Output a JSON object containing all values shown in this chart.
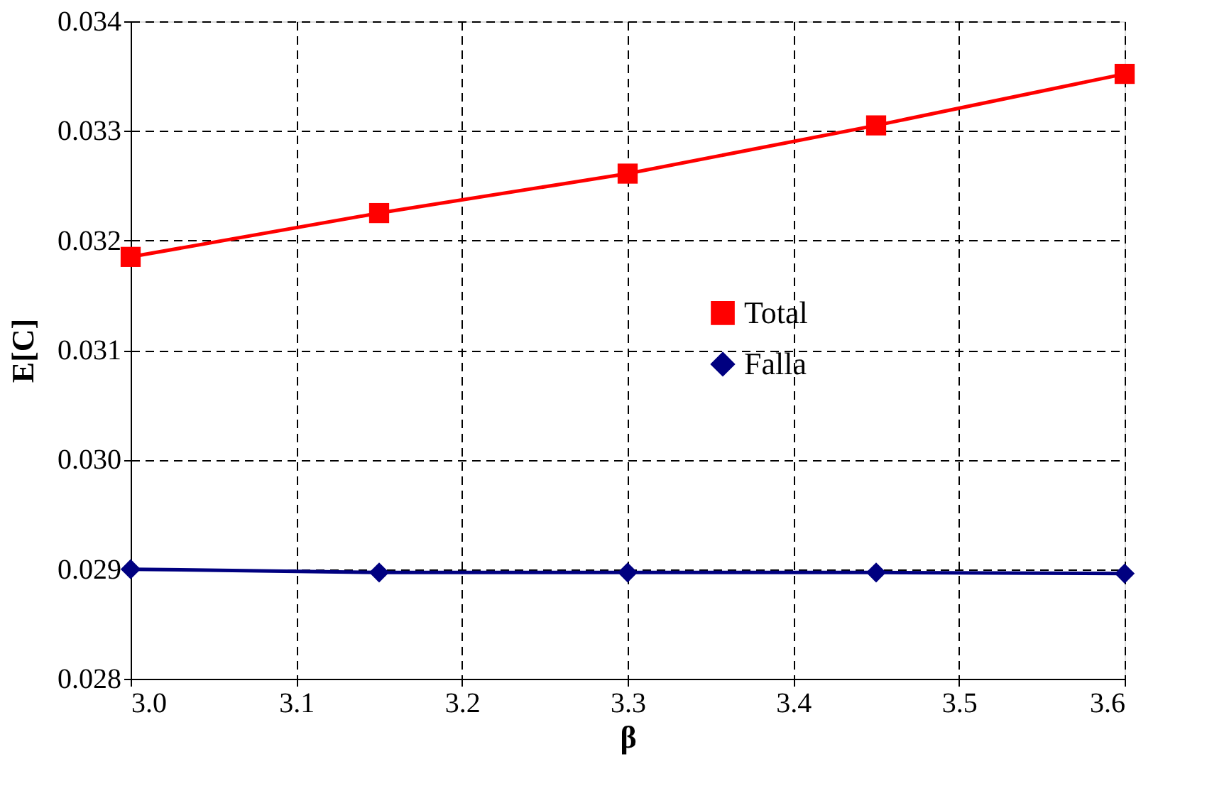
{
  "chart_data": {
    "type": "line",
    "xlabel": "β",
    "ylabel": "E[C]",
    "x": [
      3.0,
      3.15,
      3.3,
      3.45,
      3.6
    ],
    "series": [
      {
        "name": "Total",
        "color": "#ff0000",
        "marker": "square",
        "values": [
          0.03185,
          0.03225,
          0.03261,
          0.03305,
          0.03352
        ]
      },
      {
        "name": "Falla",
        "color": "#000080",
        "marker": "diamond",
        "values": [
          0.029,
          0.02897,
          0.02897,
          0.02897,
          0.02896
        ]
      }
    ],
    "xlim": [
      3.0,
      3.6
    ],
    "xticks": [
      {
        "value": 3.0,
        "label": "3.0"
      },
      3.1,
      3.2,
      3.3,
      3.4,
      3.5,
      3.6
    ],
    "ylim": [
      0.028,
      0.034
    ],
    "yticks": [
      {
        "value": 0.028,
        "label": "0.028"
      },
      {
        "value": 0.029,
        "label": "0.029"
      },
      {
        "value": 0.03,
        "label": "0.030"
      },
      {
        "value": 0.031,
        "label": "0.031"
      },
      {
        "value": 0.032,
        "label": "0.032"
      },
      {
        "value": 0.033,
        "label": "0.033"
      },
      {
        "value": 0.034,
        "label": "0.034"
      }
    ],
    "grid": true,
    "legend": "right",
    "line_style": "solid"
  }
}
